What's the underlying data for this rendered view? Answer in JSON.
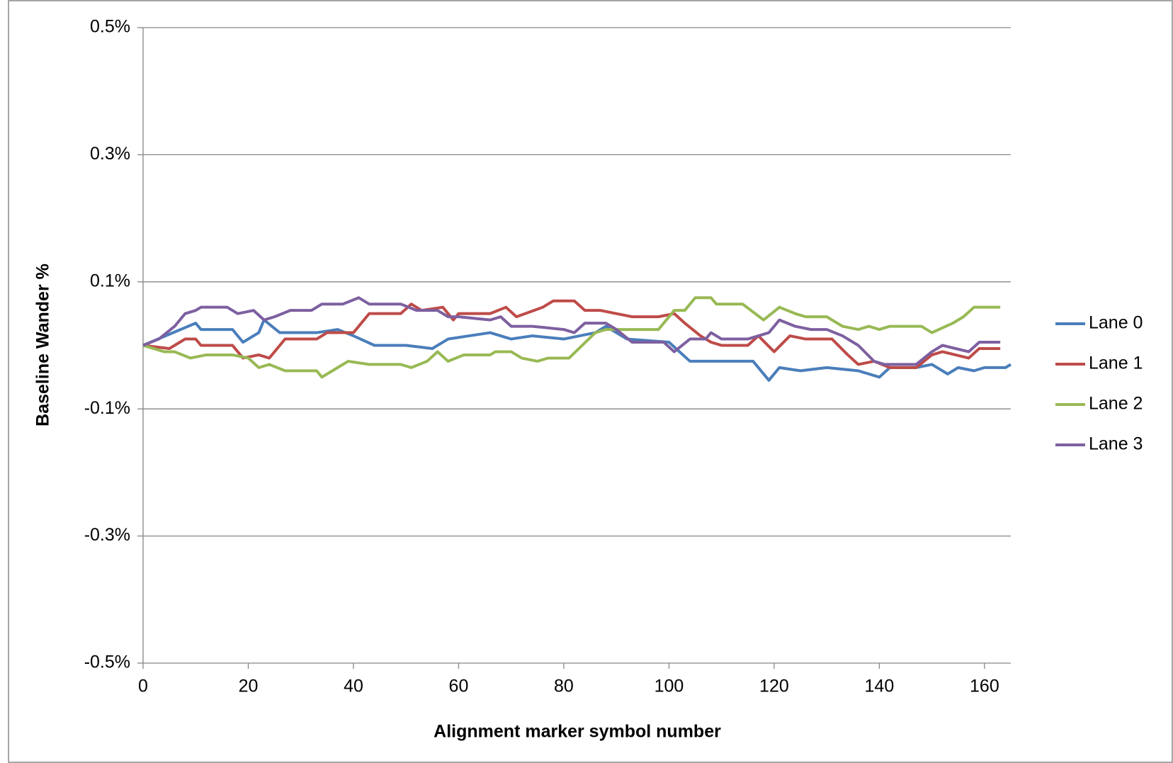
{
  "chart_data": {
    "type": "line",
    "x_label": "Alignment marker symbol number",
    "y_label": "Baseline Wander %",
    "xlim": [
      0,
      165
    ],
    "xticks": [
      0,
      20,
      40,
      60,
      80,
      100,
      120,
      140,
      160
    ],
    "ylim": [
      -0.5,
      0.5
    ],
    "yticks": [
      {
        "value": -0.5,
        "label": "-0.5%"
      },
      {
        "value": -0.3,
        "label": "-0.3%"
      },
      {
        "value": -0.1,
        "label": "-0.1%"
      },
      {
        "value": 0.1,
        "label": "0.1%"
      },
      {
        "value": 0.3,
        "label": "0.3%"
      },
      {
        "value": 0.5,
        "label": "0.5%"
      }
    ],
    "grid": true,
    "legend": "right",
    "series": [
      {
        "name": "Lane 0",
        "color": "#4a7ebb",
        "x": [
          0,
          10,
          11,
          17,
          19,
          22,
          23,
          26,
          27,
          33,
          37,
          40,
          44,
          50,
          55,
          58,
          62,
          66,
          70,
          74,
          80,
          86,
          88,
          92,
          100,
          102,
          104,
          110,
          116,
          119,
          121,
          125,
          130,
          136,
          140,
          142,
          147,
          150,
          153,
          155,
          158,
          160,
          164,
          165
        ],
        "values": [
          0,
          0.035,
          0.025,
          0.025,
          0.005,
          0.02,
          0.04,
          0.02,
          0.02,
          0.02,
          0.025,
          0.015,
          0,
          0,
          -0.005,
          0.01,
          0.015,
          0.02,
          0.01,
          0.015,
          0.01,
          0.02,
          0.03,
          0.01,
          0.005,
          -0.01,
          -0.025,
          -0.025,
          -0.025,
          -0.055,
          -0.035,
          -0.04,
          -0.035,
          -0.04,
          -0.05,
          -0.035,
          -0.035,
          -0.03,
          -0.045,
          -0.035,
          -0.04,
          -0.035,
          -0.035,
          -0.03
        ]
      },
      {
        "name": "Lane 1",
        "color": "#be4b48",
        "x": [
          0,
          5,
          8,
          10,
          11,
          17,
          19,
          22,
          24,
          27,
          33,
          35,
          40,
          43,
          49,
          51,
          53,
          57,
          59,
          60,
          66,
          69,
          71,
          76,
          78,
          82,
          84,
          87,
          90,
          93,
          98,
          101,
          103,
          106,
          108,
          110,
          115,
          117,
          120,
          123,
          126,
          131,
          134,
          136,
          139,
          142,
          147,
          150,
          152,
          157,
          159,
          163
        ],
        "values": [
          0,
          -0.005,
          0.01,
          0.01,
          0,
          0,
          -0.02,
          -0.015,
          -0.02,
          0.01,
          0.01,
          0.02,
          0.02,
          0.05,
          0.05,
          0.065,
          0.055,
          0.06,
          0.04,
          0.05,
          0.05,
          0.06,
          0.045,
          0.06,
          0.07,
          0.07,
          0.055,
          0.055,
          0.05,
          0.045,
          0.045,
          0.05,
          0.035,
          0.015,
          0.005,
          0,
          0,
          0.015,
          -0.01,
          0.015,
          0.01,
          0.01,
          -0.015,
          -0.03,
          -0.025,
          -0.035,
          -0.035,
          -0.015,
          -0.01,
          -0.02,
          -0.005,
          -0.005
        ]
      },
      {
        "name": "Lane 2",
        "color": "#98b954",
        "x": [
          0,
          4,
          6,
          9,
          12,
          17,
          20,
          22,
          24,
          27,
          33,
          34,
          37,
          39,
          43,
          49,
          51,
          54,
          56,
          58,
          61,
          66,
          67,
          70,
          72,
          75,
          77,
          81,
          86,
          88,
          92,
          98,
          101,
          103,
          105,
          108,
          109,
          114,
          118,
          121,
          124,
          126,
          130,
          133,
          136,
          138,
          140,
          142,
          148,
          150,
          154,
          156,
          158,
          163
        ],
        "values": [
          0,
          -0.01,
          -0.01,
          -0.02,
          -0.015,
          -0.015,
          -0.02,
          -0.035,
          -0.03,
          -0.04,
          -0.04,
          -0.05,
          -0.035,
          -0.025,
          -0.03,
          -0.03,
          -0.035,
          -0.025,
          -0.01,
          -0.025,
          -0.015,
          -0.015,
          -0.01,
          -0.01,
          -0.02,
          -0.025,
          -0.02,
          -0.02,
          0.02,
          0.025,
          0.025,
          0.025,
          0.055,
          0.055,
          0.075,
          0.075,
          0.065,
          0.065,
          0.04,
          0.06,
          0.05,
          0.045,
          0.045,
          0.03,
          0.025,
          0.03,
          0.025,
          0.03,
          0.03,
          0.02,
          0.035,
          0.045,
          0.06,
          0.06
        ]
      },
      {
        "name": "Lane 3",
        "color": "#7d60a0",
        "x": [
          0,
          3,
          6,
          8,
          10,
          11,
          16,
          18,
          21,
          23,
          25,
          28,
          32,
          34,
          38,
          41,
          43,
          49,
          52,
          56,
          58,
          60,
          66,
          68,
          70,
          74,
          80,
          82,
          84,
          88,
          90,
          93,
          99,
          101,
          104,
          107,
          108,
          110,
          115,
          119,
          121,
          124,
          127,
          130,
          133,
          136,
          139,
          141,
          147,
          150,
          152,
          157,
          159,
          163
        ],
        "values": [
          0,
          0.01,
          0.03,
          0.05,
          0.055,
          0.06,
          0.06,
          0.05,
          0.055,
          0.04,
          0.045,
          0.055,
          0.055,
          0.065,
          0.065,
          0.075,
          0.065,
          0.065,
          0.055,
          0.055,
          0.045,
          0.045,
          0.04,
          0.045,
          0.03,
          0.03,
          0.025,
          0.02,
          0.035,
          0.035,
          0.025,
          0.005,
          0.005,
          -0.01,
          0.01,
          0.01,
          0.02,
          0.01,
          0.01,
          0.02,
          0.04,
          0.03,
          0.025,
          0.025,
          0.015,
          0,
          -0.025,
          -0.03,
          -0.03,
          -0.01,
          0,
          -0.01,
          0.005,
          0.005
        ]
      }
    ]
  }
}
